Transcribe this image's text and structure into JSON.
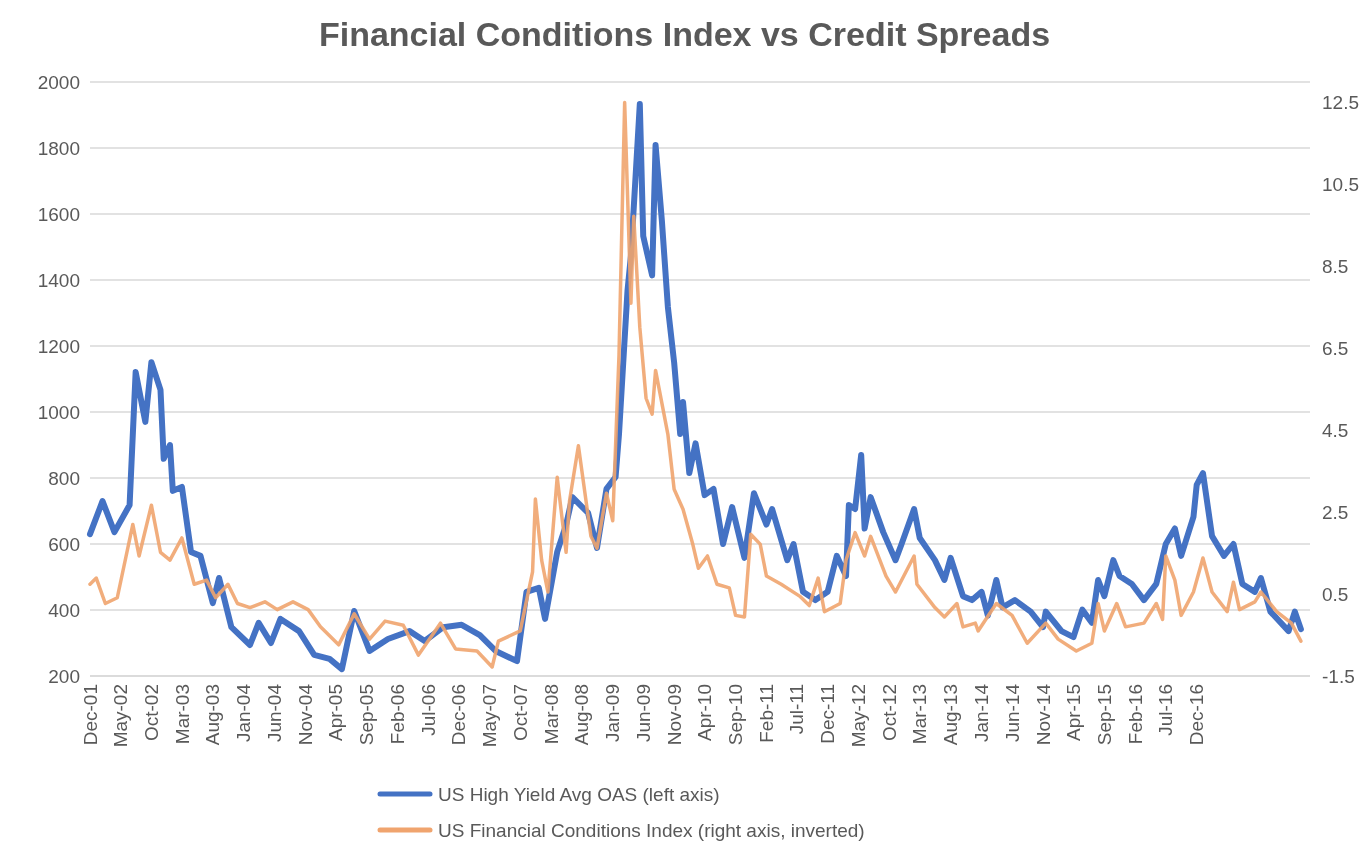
{
  "chart_data": {
    "type": "line",
    "title": "Financial Conditions Index vs Credit Spreads",
    "xlim": [
      "2001-12-01",
      "2018-06-15"
    ],
    "xticks": [
      {
        "value": "2001-12-01",
        "label": "Dec-01"
      },
      {
        "value": "2002-05-01",
        "label": "May-02"
      },
      {
        "value": "2002-10-01",
        "label": "Oct-02"
      },
      {
        "value": "2003-03-01",
        "label": "Mar-03"
      },
      {
        "value": "2003-08-01",
        "label": "Aug-03"
      },
      {
        "value": "2004-01-01",
        "label": "Jan-04"
      },
      {
        "value": "2004-06-01",
        "label": "Jun-04"
      },
      {
        "value": "2004-11-01",
        "label": "Nov-04"
      },
      {
        "value": "2005-04-01",
        "label": "Apr-05"
      },
      {
        "value": "2005-09-01",
        "label": "Sep-05"
      },
      {
        "value": "2006-02-01",
        "label": "Feb-06"
      },
      {
        "value": "2006-07-01",
        "label": "Jul-06"
      },
      {
        "value": "2006-12-01",
        "label": "Dec-06"
      },
      {
        "value": "2007-05-01",
        "label": "May-07"
      },
      {
        "value": "2007-10-01",
        "label": "Oct-07"
      },
      {
        "value": "2008-03-01",
        "label": "Mar-08"
      },
      {
        "value": "2008-08-01",
        "label": "Aug-08"
      },
      {
        "value": "2009-01-01",
        "label": "Jan-09"
      },
      {
        "value": "2009-06-01",
        "label": "Jun-09"
      },
      {
        "value": "2009-11-01",
        "label": "Nov-09"
      },
      {
        "value": "2010-04-01",
        "label": "Apr-10"
      },
      {
        "value": "2010-09-01",
        "label": "Sep-10"
      },
      {
        "value": "2011-02-01",
        "label": "Feb-11"
      },
      {
        "value": "2011-07-01",
        "label": "Jul-11"
      },
      {
        "value": "2011-12-01",
        "label": "Dec-11"
      },
      {
        "value": "2012-05-01",
        "label": "May-12"
      },
      {
        "value": "2012-10-01",
        "label": "Oct-12"
      },
      {
        "value": "2013-03-01",
        "label": "Mar-13"
      },
      {
        "value": "2013-08-01",
        "label": "Aug-13"
      },
      {
        "value": "2014-01-01",
        "label": "Jan-14"
      },
      {
        "value": "2014-06-01",
        "label": "Jun-14"
      },
      {
        "value": "2014-11-01",
        "label": "Nov-14"
      },
      {
        "value": "2015-04-01",
        "label": "Apr-15"
      },
      {
        "value": "2015-09-01",
        "label": "Sep-15"
      },
      {
        "value": "2016-02-01",
        "label": "Feb-16"
      },
      {
        "value": "2016-07-01",
        "label": "Jul-16"
      },
      {
        "value": "2016-12-01",
        "label": "Dec-16"
      }
    ],
    "ylim": [
      200,
      2000
    ],
    "yticks": [
      200,
      400,
      600,
      800,
      1000,
      1200,
      1400,
      1600,
      1800,
      2000
    ],
    "y2lim": [
      -1.5,
      13.0
    ],
    "y2ticks": [
      -1.5,
      0.5,
      2.5,
      4.5,
      6.5,
      8.5,
      10.5,
      12.5
    ],
    "grid": "y",
    "legend": "bottom",
    "line_style": "solid",
    "marker": "none",
    "series": [
      {
        "name": "US High Yield Avg OAS (left axis)",
        "color": "#4472c4",
        "x": [
          "2001-12-01",
          "2002-02-01",
          "2002-04-01",
          "2002-06-15",
          "2002-07-15",
          "2002-09-01",
          "2002-10-01",
          "2002-11-15",
          "2002-12-01",
          "2003-01-01",
          "2003-01-15",
          "2003-03-01",
          "2003-04-15",
          "2003-06-01",
          "2003-08-01",
          "2003-09-01",
          "2003-11-01",
          "2004-02-01",
          "2004-03-15",
          "2004-05-15",
          "2004-07-01",
          "2004-10-01",
          "2004-12-15",
          "2005-03-01",
          "2005-05-01",
          "2005-07-01",
          "2005-09-15",
          "2005-12-15",
          "2006-04-01",
          "2006-06-15",
          "2006-09-15",
          "2006-12-15",
          "2007-03-15",
          "2007-06-01",
          "2007-09-15",
          "2007-11-01",
          "2008-01-01",
          "2008-02-01",
          "2008-04-01",
          "2008-05-15",
          "2008-06-15",
          "2008-09-01",
          "2008-10-15",
          "2008-12-01",
          "2009-01-15",
          "2009-02-01",
          "2009-03-15",
          "2009-04-01",
          "2009-05-15",
          "2009-06-01",
          "2009-07-15",
          "2009-08-01",
          "2009-09-01",
          "2009-10-01",
          "2009-11-01",
          "2009-12-01",
          "2009-12-15",
          "2010-01-15",
          "2010-02-15",
          "2010-04-01",
          "2010-05-15",
          "2010-07-01",
          "2010-08-15",
          "2010-10-15",
          "2010-12-01",
          "2011-02-01",
          "2011-03-01",
          "2011-05-15",
          "2011-06-15",
          "2011-08-01",
          "2011-10-01",
          "2011-12-01",
          "2012-01-15",
          "2012-03-01",
          "2012-03-15",
          "2012-04-15",
          "2012-05-15",
          "2012-06-01",
          "2012-07-01",
          "2012-09-01",
          "2012-11-01",
          "2012-12-01",
          "2013-02-01",
          "2013-03-01",
          "2013-05-15",
          "2013-07-01",
          "2013-08-01",
          "2013-10-01",
          "2013-11-15",
          "2014-01-01",
          "2014-02-01",
          "2014-03-15",
          "2014-04-15",
          "2014-06-15",
          "2014-09-01",
          "2014-11-01",
          "2014-11-15",
          "2015-02-01",
          "2015-04-01",
          "2015-05-15",
          "2015-07-01",
          "2015-08-01",
          "2015-09-01",
          "2015-10-15",
          "2015-11-15",
          "2016-01-15",
          "2016-03-15",
          "2016-05-15",
          "2016-07-01",
          "2016-08-15",
          "2016-09-15",
          "2016-11-15",
          "2016-12-01",
          "2017-01-01",
          "2017-02-15",
          "2017-04-15",
          "2017-06-01",
          "2017-07-15",
          "2017-09-15",
          "2017-10-15",
          "2017-12-01",
          "2018-03-01",
          "2018-04-01",
          "2018-05-01"
        ],
        "values": [
          630,
          730,
          636,
          718,
          1121,
          970,
          1151,
          1067,
          858,
          900,
          761,
          773,
          576,
          564,
          421,
          497,
          348,
          294,
          361,
          300,
          373,
          336,
          264,
          252,
          221,
          397,
          276,
          312,
          336,
          306,
          348,
          355,
          324,
          276,
          245,
          455,
          467,
          373,
          576,
          658,
          742,
          694,
          588,
          767,
          803,
          933,
          1367,
          1473,
          1933,
          1533,
          1414,
          1809,
          1582,
          1318,
          1150,
          933,
          1030,
          815,
          905,
          748,
          767,
          600,
          712,
          558,
          754,
          659,
          706,
          551,
          600,
          455,
          430,
          455,
          564,
          503,
          718,
          706,
          870,
          647,
          742,
          636,
          551,
          600,
          706,
          618,
          551,
          491,
          558,
          442,
          430,
          455,
          383,
          491,
          408,
          430,
          395,
          348,
          395,
          336,
          318,
          401,
          361,
          491,
          442,
          551,
          503,
          479,
          430,
          479,
          600,
          647,
          564,
          682,
          779,
          815,
          624,
          564,
          600,
          479,
          455,
          497,
          395,
          336,
          395,
          342
        ]
      },
      {
        "name": "US Financial Conditions Index (right axis, inverted)",
        "color": "#f0a46e",
        "axis": "y2",
        "x": [
          "2001-12-01",
          "2002-01-01",
          "2002-02-15",
          "2002-04-15",
          "2002-07-01",
          "2002-08-01",
          "2002-10-01",
          "2002-11-15",
          "2003-01-01",
          "2003-03-01",
          "2003-05-01",
          "2003-07-01",
          "2003-08-15",
          "2003-10-15",
          "2003-12-01",
          "2004-02-01",
          "2004-04-15",
          "2004-06-15",
          "2004-09-01",
          "2004-11-15",
          "2005-01-15",
          "2005-04-15",
          "2005-07-01",
          "2005-09-15",
          "2005-12-01",
          "2006-03-01",
          "2006-05-15",
          "2006-09-01",
          "2006-11-15",
          "2007-03-01",
          "2007-05-15",
          "2007-06-15",
          "2007-10-01",
          "2007-12-01",
          "2007-12-15",
          "2008-01-15",
          "2008-02-15",
          "2008-04-01",
          "2008-05-15",
          "2008-06-01",
          "2008-07-15",
          "2008-09-15",
          "2008-10-15",
          "2008-12-01",
          "2009-01-01",
          "2009-02-01",
          "2009-03-01",
          "2009-04-01",
          "2009-04-15",
          "2009-05-15",
          "2009-06-15",
          "2009-07-15",
          "2009-08-01",
          "2009-10-01",
          "2009-11-01",
          "2009-12-15",
          "2010-02-01",
          "2010-03-01",
          "2010-04-15",
          "2010-06-01",
          "2010-08-01",
          "2010-09-01",
          "2010-10-15",
          "2010-11-15",
          "2011-01-01",
          "2011-02-01",
          "2011-04-15",
          "2011-07-15",
          "2011-09-01",
          "2011-10-15",
          "2011-11-15",
          "2012-02-01",
          "2012-03-01",
          "2012-04-15",
          "2012-06-01",
          "2012-07-01",
          "2012-09-15",
          "2012-11-01",
          "2013-02-01",
          "2013-02-15",
          "2013-05-15",
          "2013-07-01",
          "2013-09-01",
          "2013-10-01",
          "2013-12-01",
          "2013-12-15",
          "2014-03-15",
          "2014-06-01",
          "2014-08-15",
          "2014-11-15",
          "2015-01-15",
          "2015-04-15",
          "2015-07-01",
          "2015-08-01",
          "2015-09-01",
          "2015-11-01",
          "2015-12-15",
          "2016-03-15",
          "2016-05-15",
          "2016-06-15",
          "2016-07-01",
          "2016-08-15",
          "2016-09-15",
          "2016-11-15",
          "2017-01-01",
          "2017-02-15",
          "2017-05-01",
          "2017-06-01",
          "2017-07-01",
          "2017-09-15",
          "2017-10-15",
          "2018-01-01",
          "2018-03-15",
          "2018-05-01"
        ],
        "values": [
          0.74,
          0.89,
          0.27,
          0.41,
          2.2,
          1.43,
          2.67,
          1.52,
          1.33,
          1.87,
          0.74,
          0.84,
          0.41,
          0.74,
          0.27,
          0.17,
          0.31,
          0.12,
          0.31,
          0.12,
          -0.3,
          -0.74,
          0.02,
          -0.6,
          -0.16,
          -0.26,
          -0.99,
          -0.21,
          -0.84,
          -0.89,
          -1.28,
          -0.65,
          -0.4,
          1.04,
          2.82,
          1.33,
          0.55,
          3.35,
          1.52,
          2.77,
          4.12,
          1.91,
          1.62,
          2.96,
          2.29,
          6.34,
          12.5,
          7.6,
          9.72,
          7.01,
          5.28,
          4.89,
          5.96,
          4.4,
          3.06,
          2.57,
          1.72,
          1.13,
          1.43,
          0.74,
          0.65,
          -0.02,
          -0.06,
          1.96,
          1.72,
          0.94,
          0.74,
          0.45,
          0.22,
          0.89,
          0.07,
          0.27,
          1.33,
          2.0,
          1.43,
          1.91,
          0.94,
          0.55,
          1.43,
          0.74,
          0.17,
          -0.06,
          0.27,
          -0.3,
          -0.21,
          -0.4,
          0.27,
          -0.02,
          -0.7,
          -0.21,
          -0.6,
          -0.89,
          -0.7,
          0.27,
          -0.4,
          0.27,
          -0.3,
          -0.21,
          0.27,
          -0.12,
          1.43,
          0.84,
          -0.02,
          0.55,
          1.38,
          0.55,
          0.07,
          0.79,
          0.12,
          0.31,
          0.55,
          0.07,
          -0.21,
          -0.65
        ]
      }
    ]
  }
}
